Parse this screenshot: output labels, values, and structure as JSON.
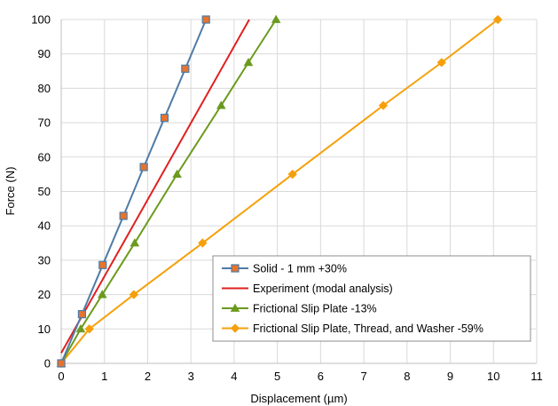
{
  "chart_data": {
    "type": "line",
    "title": "",
    "xlabel": "Displacement (µm)",
    "ylabel": "Force (N)",
    "xlim": [
      0,
      11
    ],
    "ylim": [
      0,
      100
    ],
    "xticks": [
      0,
      1,
      2,
      3,
      4,
      5,
      6,
      7,
      8,
      9,
      10,
      11
    ],
    "yticks": [
      0,
      10,
      20,
      30,
      40,
      50,
      60,
      70,
      80,
      90,
      100
    ],
    "grid": true,
    "legend_position": "bottom-right",
    "series": [
      {
        "name": "Solid - 1 mm  +30%",
        "color": "#4f7ba6",
        "marker": "square",
        "marker_color": "#e8732c",
        "x": [
          0,
          0.48,
          0.96,
          1.44,
          1.91,
          2.39,
          2.87,
          3.35
        ],
        "y": [
          0,
          14.3,
          28.6,
          42.9,
          57.1,
          71.4,
          85.7,
          100
        ]
      },
      {
        "name": "Experiment (modal analysis)",
        "color": "#e02020",
        "marker": "none",
        "x": [
          0,
          4.35
        ],
        "y": [
          3,
          100
        ]
      },
      {
        "name": "Frictional Slip Plate  -13%",
        "color": "#6b9a1e",
        "marker": "triangle",
        "marker_color": "#6b9a1e",
        "x": [
          0,
          0.45,
          0.95,
          1.7,
          2.68,
          3.7,
          4.33,
          4.97
        ],
        "y": [
          0,
          10,
          20,
          35,
          55,
          75,
          87.5,
          100
        ]
      },
      {
        "name": "Frictional Slip Plate, Thread, and Washer  -59%",
        "color": "#f5a00a",
        "marker": "diamond",
        "marker_color": "#f5a00a",
        "x": [
          0,
          0.65,
          1.68,
          3.27,
          5.35,
          7.45,
          8.8,
          10.1
        ],
        "y": [
          0,
          10,
          20,
          35,
          55,
          75,
          87.5,
          100
        ]
      }
    ]
  }
}
